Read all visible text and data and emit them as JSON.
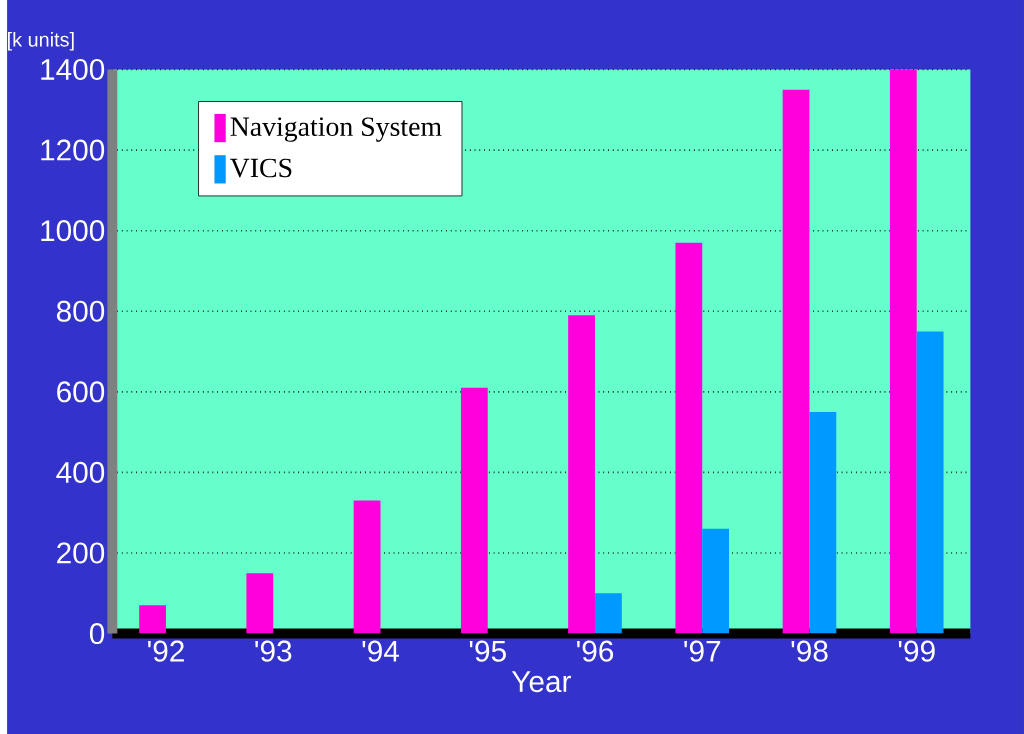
{
  "chart_data": {
    "type": "bar",
    "xlabel": "Year",
    "ylabel": "[k units]",
    "categories": [
      "'92",
      "'93",
      "'94",
      "'95",
      "'96",
      "'97",
      "'98",
      "'99"
    ],
    "series": [
      {
        "name": "Navigation System",
        "color": "#ff00dd",
        "values": [
          70,
          150,
          330,
          610,
          790,
          970,
          1350,
          1400
        ]
      },
      {
        "name": "VICS",
        "color": "#0099ff",
        "values": [
          null,
          null,
          null,
          null,
          100,
          260,
          550,
          750
        ]
      }
    ],
    "ylim": [
      0,
      1400
    ],
    "yticks": [
      0,
      200,
      400,
      600,
      800,
      1000,
      1200,
      1400
    ],
    "grid": "y",
    "legend": "top left"
  }
}
